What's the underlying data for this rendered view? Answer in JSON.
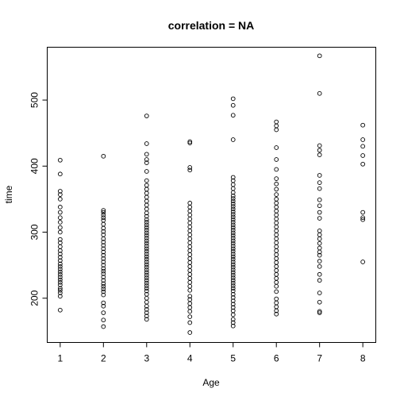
{
  "chart_data": {
    "type": "scatter",
    "title": "correlation = NA",
    "xlabel": "Age",
    "ylabel": "time",
    "xlim": [
      0.7,
      8.3
    ],
    "ylim": [
      133,
      580
    ],
    "xticks": [
      1,
      2,
      3,
      4,
      5,
      6,
      7,
      8
    ],
    "yticks": [
      200,
      300,
      400,
      500
    ],
    "grid": false,
    "legend": "none",
    "series": [
      {
        "points": [
          {
            "x": 1,
            "y": 182
          },
          {
            "x": 1,
            "y": 203
          },
          {
            "x": 1,
            "y": 208
          },
          {
            "x": 1,
            "y": 212
          },
          {
            "x": 1,
            "y": 215
          },
          {
            "x": 1,
            "y": 220
          },
          {
            "x": 1,
            "y": 224
          },
          {
            "x": 1,
            "y": 228
          },
          {
            "x": 1,
            "y": 232
          },
          {
            "x": 1,
            "y": 236
          },
          {
            "x": 1,
            "y": 240
          },
          {
            "x": 1,
            "y": 244
          },
          {
            "x": 1,
            "y": 248
          },
          {
            "x": 1,
            "y": 252
          },
          {
            "x": 1,
            "y": 257
          },
          {
            "x": 1,
            "y": 262
          },
          {
            "x": 1,
            "y": 267
          },
          {
            "x": 1,
            "y": 272
          },
          {
            "x": 1,
            "y": 278
          },
          {
            "x": 1,
            "y": 284
          },
          {
            "x": 1,
            "y": 289
          },
          {
            "x": 1,
            "y": 300
          },
          {
            "x": 1,
            "y": 307
          },
          {
            "x": 1,
            "y": 315
          },
          {
            "x": 1,
            "y": 322
          },
          {
            "x": 1,
            "y": 330
          },
          {
            "x": 1,
            "y": 338
          },
          {
            "x": 1,
            "y": 350
          },
          {
            "x": 1,
            "y": 357
          },
          {
            "x": 1,
            "y": 362
          },
          {
            "x": 1,
            "y": 388
          },
          {
            "x": 1,
            "y": 409
          },
          {
            "x": 2,
            "y": 157
          },
          {
            "x": 2,
            "y": 167
          },
          {
            "x": 2,
            "y": 178
          },
          {
            "x": 2,
            "y": 188
          },
          {
            "x": 2,
            "y": 193
          },
          {
            "x": 2,
            "y": 205
          },
          {
            "x": 2,
            "y": 210
          },
          {
            "x": 2,
            "y": 214
          },
          {
            "x": 2,
            "y": 218
          },
          {
            "x": 2,
            "y": 222
          },
          {
            "x": 2,
            "y": 227
          },
          {
            "x": 2,
            "y": 232
          },
          {
            "x": 2,
            "y": 237
          },
          {
            "x": 2,
            "y": 241
          },
          {
            "x": 2,
            "y": 245
          },
          {
            "x": 2,
            "y": 250
          },
          {
            "x": 2,
            "y": 255
          },
          {
            "x": 2,
            "y": 260
          },
          {
            "x": 2,
            "y": 265
          },
          {
            "x": 2,
            "y": 270
          },
          {
            "x": 2,
            "y": 275
          },
          {
            "x": 2,
            "y": 280
          },
          {
            "x": 2,
            "y": 285
          },
          {
            "x": 2,
            "y": 290
          },
          {
            "x": 2,
            "y": 296
          },
          {
            "x": 2,
            "y": 301
          },
          {
            "x": 2,
            "y": 306
          },
          {
            "x": 2,
            "y": 312
          },
          {
            "x": 2,
            "y": 318
          },
          {
            "x": 2,
            "y": 322
          },
          {
            "x": 2,
            "y": 326
          },
          {
            "x": 2,
            "y": 330
          },
          {
            "x": 2,
            "y": 333
          },
          {
            "x": 2,
            "y": 415
          },
          {
            "x": 3,
            "y": 168
          },
          {
            "x": 3,
            "y": 173
          },
          {
            "x": 3,
            "y": 178
          },
          {
            "x": 3,
            "y": 183
          },
          {
            "x": 3,
            "y": 188
          },
          {
            "x": 3,
            "y": 194
          },
          {
            "x": 3,
            "y": 200
          },
          {
            "x": 3,
            "y": 206
          },
          {
            "x": 3,
            "y": 211
          },
          {
            "x": 3,
            "y": 215
          },
          {
            "x": 3,
            "y": 219
          },
          {
            "x": 3,
            "y": 223
          },
          {
            "x": 3,
            "y": 227
          },
          {
            "x": 3,
            "y": 231
          },
          {
            "x": 3,
            "y": 235
          },
          {
            "x": 3,
            "y": 239
          },
          {
            "x": 3,
            "y": 243
          },
          {
            "x": 3,
            "y": 247
          },
          {
            "x": 3,
            "y": 251
          },
          {
            "x": 3,
            "y": 255
          },
          {
            "x": 3,
            "y": 259
          },
          {
            "x": 3,
            "y": 263
          },
          {
            "x": 3,
            "y": 267
          },
          {
            "x": 3,
            "y": 271
          },
          {
            "x": 3,
            "y": 275
          },
          {
            "x": 3,
            "y": 279
          },
          {
            "x": 3,
            "y": 283
          },
          {
            "x": 3,
            "y": 287
          },
          {
            "x": 3,
            "y": 291
          },
          {
            "x": 3,
            "y": 295
          },
          {
            "x": 3,
            "y": 299
          },
          {
            "x": 3,
            "y": 303
          },
          {
            "x": 3,
            "y": 307
          },
          {
            "x": 3,
            "y": 311
          },
          {
            "x": 3,
            "y": 315
          },
          {
            "x": 3,
            "y": 319
          },
          {
            "x": 3,
            "y": 324
          },
          {
            "x": 3,
            "y": 329
          },
          {
            "x": 3,
            "y": 335
          },
          {
            "x": 3,
            "y": 341
          },
          {
            "x": 3,
            "y": 347
          },
          {
            "x": 3,
            "y": 353
          },
          {
            "x": 3,
            "y": 359
          },
          {
            "x": 3,
            "y": 365
          },
          {
            "x": 3,
            "y": 371
          },
          {
            "x": 3,
            "y": 378
          },
          {
            "x": 3,
            "y": 392
          },
          {
            "x": 3,
            "y": 405
          },
          {
            "x": 3,
            "y": 410
          },
          {
            "x": 3,
            "y": 418
          },
          {
            "x": 3,
            "y": 434
          },
          {
            "x": 3,
            "y": 476
          },
          {
            "x": 4,
            "y": 148
          },
          {
            "x": 4,
            "y": 163
          },
          {
            "x": 4,
            "y": 172
          },
          {
            "x": 4,
            "y": 180
          },
          {
            "x": 4,
            "y": 186
          },
          {
            "x": 4,
            "y": 192
          },
          {
            "x": 4,
            "y": 198
          },
          {
            "x": 4,
            "y": 203
          },
          {
            "x": 4,
            "y": 212
          },
          {
            "x": 4,
            "y": 218
          },
          {
            "x": 4,
            "y": 224
          },
          {
            "x": 4,
            "y": 230
          },
          {
            "x": 4,
            "y": 236
          },
          {
            "x": 4,
            "y": 242
          },
          {
            "x": 4,
            "y": 248
          },
          {
            "x": 4,
            "y": 254
          },
          {
            "x": 4,
            "y": 260
          },
          {
            "x": 4,
            "y": 266
          },
          {
            "x": 4,
            "y": 272
          },
          {
            "x": 4,
            "y": 278
          },
          {
            "x": 4,
            "y": 284
          },
          {
            "x": 4,
            "y": 290
          },
          {
            "x": 4,
            "y": 296
          },
          {
            "x": 4,
            "y": 302
          },
          {
            "x": 4,
            "y": 308
          },
          {
            "x": 4,
            "y": 314
          },
          {
            "x": 4,
            "y": 320
          },
          {
            "x": 4,
            "y": 326
          },
          {
            "x": 4,
            "y": 332
          },
          {
            "x": 4,
            "y": 338
          },
          {
            "x": 4,
            "y": 344
          },
          {
            "x": 4,
            "y": 394
          },
          {
            "x": 4,
            "y": 398
          },
          {
            "x": 4,
            "y": 435
          },
          {
            "x": 4,
            "y": 437
          },
          {
            "x": 5,
            "y": 158
          },
          {
            "x": 5,
            "y": 163
          },
          {
            "x": 5,
            "y": 168
          },
          {
            "x": 5,
            "y": 175
          },
          {
            "x": 5,
            "y": 181
          },
          {
            "x": 5,
            "y": 186
          },
          {
            "x": 5,
            "y": 191
          },
          {
            "x": 5,
            "y": 196
          },
          {
            "x": 5,
            "y": 201
          },
          {
            "x": 5,
            "y": 206
          },
          {
            "x": 5,
            "y": 211
          },
          {
            "x": 5,
            "y": 215
          },
          {
            "x": 5,
            "y": 219
          },
          {
            "x": 5,
            "y": 223
          },
          {
            "x": 5,
            "y": 227
          },
          {
            "x": 5,
            "y": 231
          },
          {
            "x": 5,
            "y": 235
          },
          {
            "x": 5,
            "y": 239
          },
          {
            "x": 5,
            "y": 243
          },
          {
            "x": 5,
            "y": 247
          },
          {
            "x": 5,
            "y": 251
          },
          {
            "x": 5,
            "y": 255
          },
          {
            "x": 5,
            "y": 259
          },
          {
            "x": 5,
            "y": 263
          },
          {
            "x": 5,
            "y": 267
          },
          {
            "x": 5,
            "y": 271
          },
          {
            "x": 5,
            "y": 275
          },
          {
            "x": 5,
            "y": 279
          },
          {
            "x": 5,
            "y": 283
          },
          {
            "x": 5,
            "y": 287
          },
          {
            "x": 5,
            "y": 291
          },
          {
            "x": 5,
            "y": 295
          },
          {
            "x": 5,
            "y": 299
          },
          {
            "x": 5,
            "y": 303
          },
          {
            "x": 5,
            "y": 307
          },
          {
            "x": 5,
            "y": 311
          },
          {
            "x": 5,
            "y": 315
          },
          {
            "x": 5,
            "y": 319
          },
          {
            "x": 5,
            "y": 323
          },
          {
            "x": 5,
            "y": 327
          },
          {
            "x": 5,
            "y": 331
          },
          {
            "x": 5,
            "y": 335
          },
          {
            "x": 5,
            "y": 339
          },
          {
            "x": 5,
            "y": 343
          },
          {
            "x": 5,
            "y": 347
          },
          {
            "x": 5,
            "y": 351
          },
          {
            "x": 5,
            "y": 355
          },
          {
            "x": 5,
            "y": 360
          },
          {
            "x": 5,
            "y": 366
          },
          {
            "x": 5,
            "y": 372
          },
          {
            "x": 5,
            "y": 378
          },
          {
            "x": 5,
            "y": 383
          },
          {
            "x": 5,
            "y": 440
          },
          {
            "x": 5,
            "y": 477
          },
          {
            "x": 5,
            "y": 492
          },
          {
            "x": 5,
            "y": 502
          },
          {
            "x": 6,
            "y": 176
          },
          {
            "x": 6,
            "y": 181
          },
          {
            "x": 6,
            "y": 187
          },
          {
            "x": 6,
            "y": 193
          },
          {
            "x": 6,
            "y": 199
          },
          {
            "x": 6,
            "y": 210
          },
          {
            "x": 6,
            "y": 218
          },
          {
            "x": 6,
            "y": 224
          },
          {
            "x": 6,
            "y": 230
          },
          {
            "x": 6,
            "y": 236
          },
          {
            "x": 6,
            "y": 242
          },
          {
            "x": 6,
            "y": 248
          },
          {
            "x": 6,
            "y": 254
          },
          {
            "x": 6,
            "y": 260
          },
          {
            "x": 6,
            "y": 266
          },
          {
            "x": 6,
            "y": 272
          },
          {
            "x": 6,
            "y": 278
          },
          {
            "x": 6,
            "y": 284
          },
          {
            "x": 6,
            "y": 290
          },
          {
            "x": 6,
            "y": 296
          },
          {
            "x": 6,
            "y": 302
          },
          {
            "x": 6,
            "y": 308
          },
          {
            "x": 6,
            "y": 314
          },
          {
            "x": 6,
            "y": 320
          },
          {
            "x": 6,
            "y": 326
          },
          {
            "x": 6,
            "y": 332
          },
          {
            "x": 6,
            "y": 338
          },
          {
            "x": 6,
            "y": 344
          },
          {
            "x": 6,
            "y": 350
          },
          {
            "x": 6,
            "y": 357
          },
          {
            "x": 6,
            "y": 365
          },
          {
            "x": 6,
            "y": 373
          },
          {
            "x": 6,
            "y": 381
          },
          {
            "x": 6,
            "y": 395
          },
          {
            "x": 6,
            "y": 410
          },
          {
            "x": 6,
            "y": 428
          },
          {
            "x": 6,
            "y": 455
          },
          {
            "x": 6,
            "y": 461
          },
          {
            "x": 6,
            "y": 467
          },
          {
            "x": 7,
            "y": 178
          },
          {
            "x": 7,
            "y": 180
          },
          {
            "x": 7,
            "y": 194
          },
          {
            "x": 7,
            "y": 208
          },
          {
            "x": 7,
            "y": 227
          },
          {
            "x": 7,
            "y": 236
          },
          {
            "x": 7,
            "y": 248
          },
          {
            "x": 7,
            "y": 256
          },
          {
            "x": 7,
            "y": 265
          },
          {
            "x": 7,
            "y": 270
          },
          {
            "x": 7,
            "y": 276
          },
          {
            "x": 7,
            "y": 283
          },
          {
            "x": 7,
            "y": 290
          },
          {
            "x": 7,
            "y": 296
          },
          {
            "x": 7,
            "y": 302
          },
          {
            "x": 7,
            "y": 321
          },
          {
            "x": 7,
            "y": 330
          },
          {
            "x": 7,
            "y": 340
          },
          {
            "x": 7,
            "y": 349
          },
          {
            "x": 7,
            "y": 366
          },
          {
            "x": 7,
            "y": 375
          },
          {
            "x": 7,
            "y": 386
          },
          {
            "x": 7,
            "y": 417
          },
          {
            "x": 7,
            "y": 424
          },
          {
            "x": 7,
            "y": 431
          },
          {
            "x": 7,
            "y": 510
          },
          {
            "x": 7,
            "y": 567
          },
          {
            "x": 8,
            "y": 255
          },
          {
            "x": 8,
            "y": 319
          },
          {
            "x": 8,
            "y": 322
          },
          {
            "x": 8,
            "y": 330
          },
          {
            "x": 8,
            "y": 403
          },
          {
            "x": 8,
            "y": 416
          },
          {
            "x": 8,
            "y": 430
          },
          {
            "x": 8,
            "y": 440
          },
          {
            "x": 8,
            "y": 462
          }
        ]
      }
    ]
  }
}
